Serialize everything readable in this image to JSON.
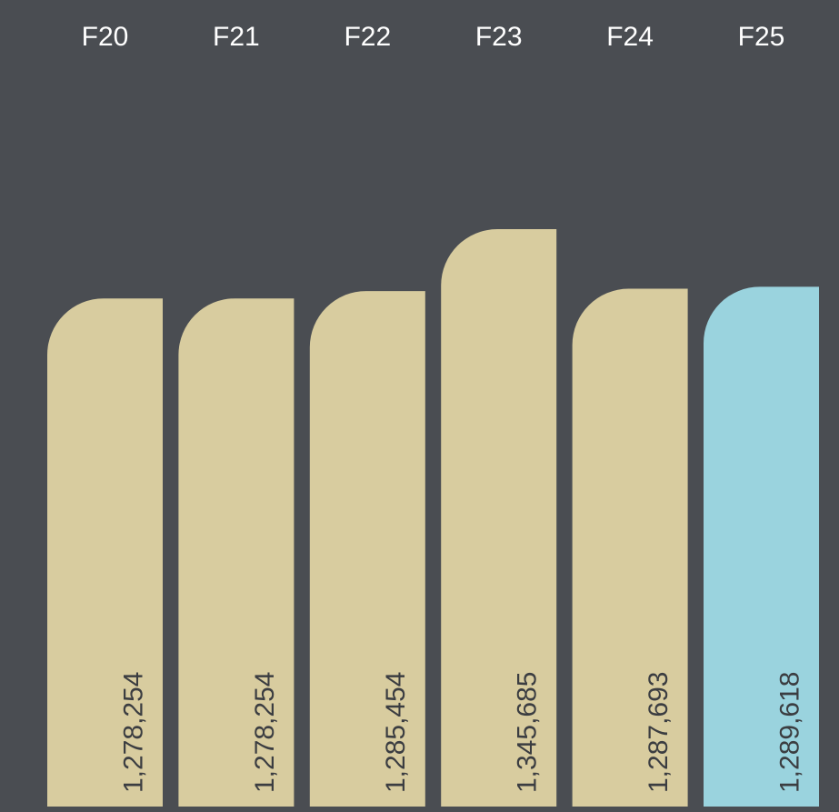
{
  "chart_data": {
    "type": "bar",
    "categories": [
      "F20",
      "F21",
      "F22",
      "F23",
      "F24",
      "F25"
    ],
    "values": [
      1278254,
      1278254,
      1285454,
      1345685,
      1287693,
      1289618
    ],
    "value_labels": [
      "1,278,254",
      "1,278,254",
      "1,285,454",
      "1,345,685",
      "1,287,693",
      "1,289,618"
    ],
    "colors": [
      "#d8cc9f",
      "#d8cc9f",
      "#d8cc9f",
      "#d8cc9f",
      "#d8cc9f",
      "#9ad3de"
    ]
  }
}
